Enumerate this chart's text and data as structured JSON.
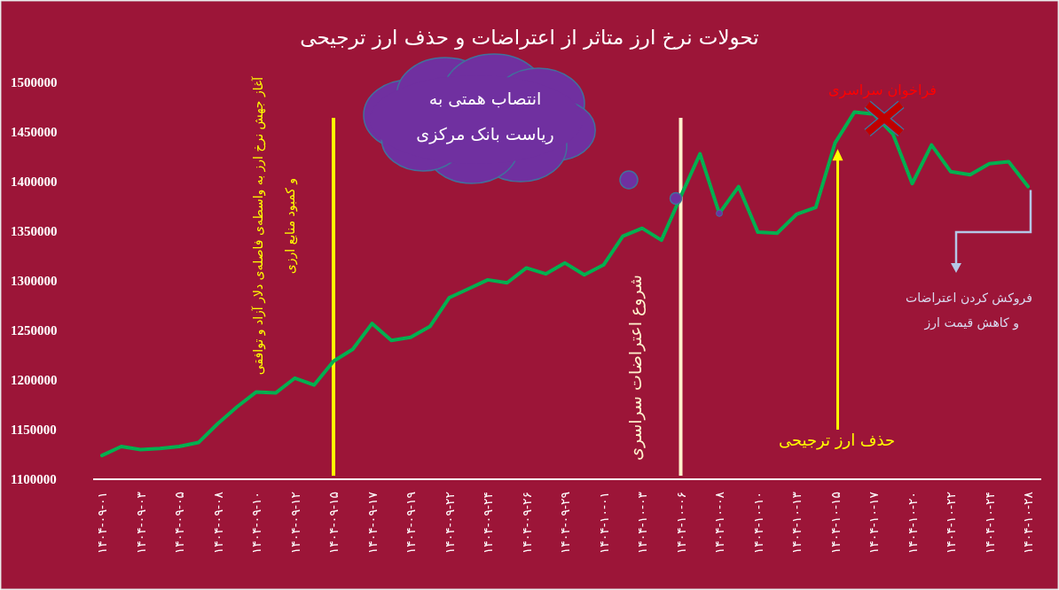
{
  "chart_data": {
    "type": "line",
    "title": "تحولات نرخ ارز متاثر از اعتراضات و حذف ارز ترجیحی",
    "categories": [
      "۱۴۰۴-۰۹-۰۱",
      null,
      "۱۴۰۴-۰۹-۰۳",
      null,
      "۱۴۰۴-۰۹-۰۵",
      null,
      "۱۴۰۴-۰۹-۰۸",
      null,
      "۱۴۰۴-۰۹-۱۰",
      null,
      "۱۴۰۴-۰۹-۱۲",
      null,
      "۱۴۰۴-۰۹-۱۵",
      null,
      "۱۴۰۴-۰۹-۱۷",
      null,
      "۱۴۰۴-۰۹-۱۹",
      null,
      "۱۴۰۴-۰۹-۲۲",
      null,
      "۱۴۰۴-۰۹-۲۴",
      null,
      "۱۴۰۴-۰۹-۲۶",
      null,
      "۱۴۰۴-۰۹-۲۹",
      null,
      "۱۴۰۴-۱۰-۰۱",
      null,
      "۱۴۰۴-۱۰-۰۳",
      null,
      "۱۴۰۴-۱۰-۰۶",
      null,
      "۱۴۰۴-۱۰-۰۸",
      null,
      "۱۴۰۴-۱۰-۱۰",
      null,
      "۱۴۰۴-۱۰-۱۳",
      null,
      "۱۴۰۴-۱۰-۱۵",
      null,
      "۱۴۰۴-۱۰-۱۷",
      null,
      "۱۴۰۴-۱۰-۲۰",
      null,
      "۱۴۰۴-۱۰-۲۲",
      null,
      "۱۴۰۴-۱۰-۲۴",
      null,
      "۱۴۰۴-۱۰-۲۸"
    ],
    "series": [
      {
        "color": "#00b050",
        "values": [
          1124000,
          1133000,
          1130000,
          1131000,
          1133000,
          1137000,
          1156000,
          1173000,
          1188000,
          1187000,
          1202000,
          1195000,
          1219000,
          1231000,
          1257000,
          1240000,
          1243000,
          1254000,
          1283000,
          1292000,
          1301000,
          1298000,
          1313000,
          1307000,
          1318000,
          1306000,
          1316000,
          1345000,
          1353000,
          1341000,
          1385000,
          1428000,
          1368000,
          1395000,
          1349000,
          1348000,
          1367000,
          1374000,
          1439000,
          1470000,
          1468000,
          1448000,
          1398000,
          1437000,
          1410000,
          1407000,
          1418000,
          1420000,
          1395000
        ]
      }
    ],
    "ylim": [
      1100000,
      1500000
    ],
    "yticks": [
      1100000,
      1150000,
      1200000,
      1250000,
      1300000,
      1350000,
      1400000,
      1450000,
      1500000
    ],
    "grid": false,
    "marker": "none",
    "line_style": "solid",
    "annotations": [
      "انتصاب همتی به\nریاست بانک مرکزی",
      "فراخوان سراسری",
      "حذف ارز ترجیحی",
      "فروکش کردن اعتراضات\nو کاهش قیمت ارز"
    ],
    "ref_lines": [
      {
        "axis": "x",
        "value": "۱۴۰۴-۰۹-۱۵",
        "label": "آغاز جهش نرخ ارز به واسطه‌ی فاصله‌ی دلار آزاد و توافقی\nو کمبود منابع ارزی",
        "color": "#ffff00"
      },
      {
        "axis": "x",
        "value": "۱۴۰۴-۱۰-۰۶",
        "label": "شروع اعتراضات سراسری",
        "color": "#fff2cc"
      }
    ]
  }
}
